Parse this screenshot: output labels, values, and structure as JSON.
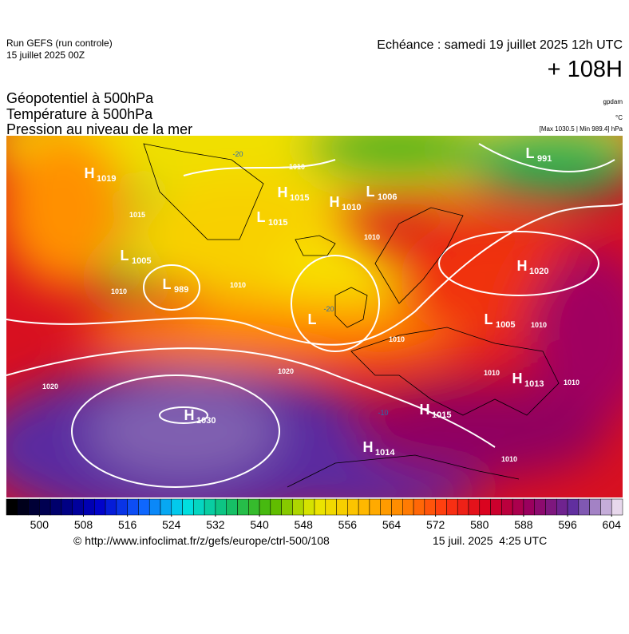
{
  "header": {
    "run": "Run GEFS (run controle)",
    "run_date": "15 juillet 2025 00Z",
    "valid": "Echéance : samedi 19 juillet 2025 12h UTC",
    "lead": "+ 108H",
    "fields": [
      "Géopotentiel à 500hPa",
      "Température à 500hPa",
      "Pression au niveau de la mer"
    ],
    "units": [
      "gpdam",
      "°C",
      "[Max 1030.5 | Min 989.4] hPa"
    ]
  },
  "centers": [
    {
      "letter": "H",
      "value": 1019
    },
    {
      "letter": "H",
      "value": 1015
    },
    {
      "letter": "L",
      "value": 1006
    },
    {
      "letter": "H",
      "value": 1010
    },
    {
      "letter": "L",
      "value": 1015
    },
    {
      "letter": "L",
      "value": 1005
    },
    {
      "letter": "L",
      "value": 989
    },
    {
      "letter": "L",
      "value": 991
    },
    {
      "letter": "H",
      "value": 1020
    },
    {
      "letter": "L",
      "value": 1005
    },
    {
      "letter": "H",
      "value": 1013
    },
    {
      "letter": "H",
      "value": 1015
    },
    {
      "letter": "H",
      "value": 1030
    },
    {
      "letter": "H",
      "value": 1014
    },
    {
      "letter": "L",
      "value": null
    }
  ],
  "isobar_labels": [
    1010,
    1010,
    1010,
    1010,
    1020,
    1020,
    1010,
    1010,
    1010,
    1010,
    1010,
    1015
  ],
  "temperature_labels": [
    -20,
    -20,
    -10
  ],
  "colorbar": {
    "range": [
      494,
      606
    ],
    "step": 2,
    "ticks": [
      500,
      508,
      516,
      524,
      532,
      540,
      548,
      556,
      564,
      572,
      580,
      588,
      596,
      604
    ],
    "palette": [
      "#000000",
      "#00006a",
      "#0000c8",
      "#1060ff",
      "#00e0e8",
      "#10c070",
      "#50b800",
      "#e8e800",
      "#ffc000",
      "#ff8800",
      "#ff3a10",
      "#d80020",
      "#980060",
      "#6030a0",
      "#e8d8ec"
    ]
  },
  "footer": {
    "url": "© http://www.infoclimat.fr/z/gefs/europe/ctrl-500/108",
    "timestamp": "15 juil. 2025  4:25 UTC"
  }
}
